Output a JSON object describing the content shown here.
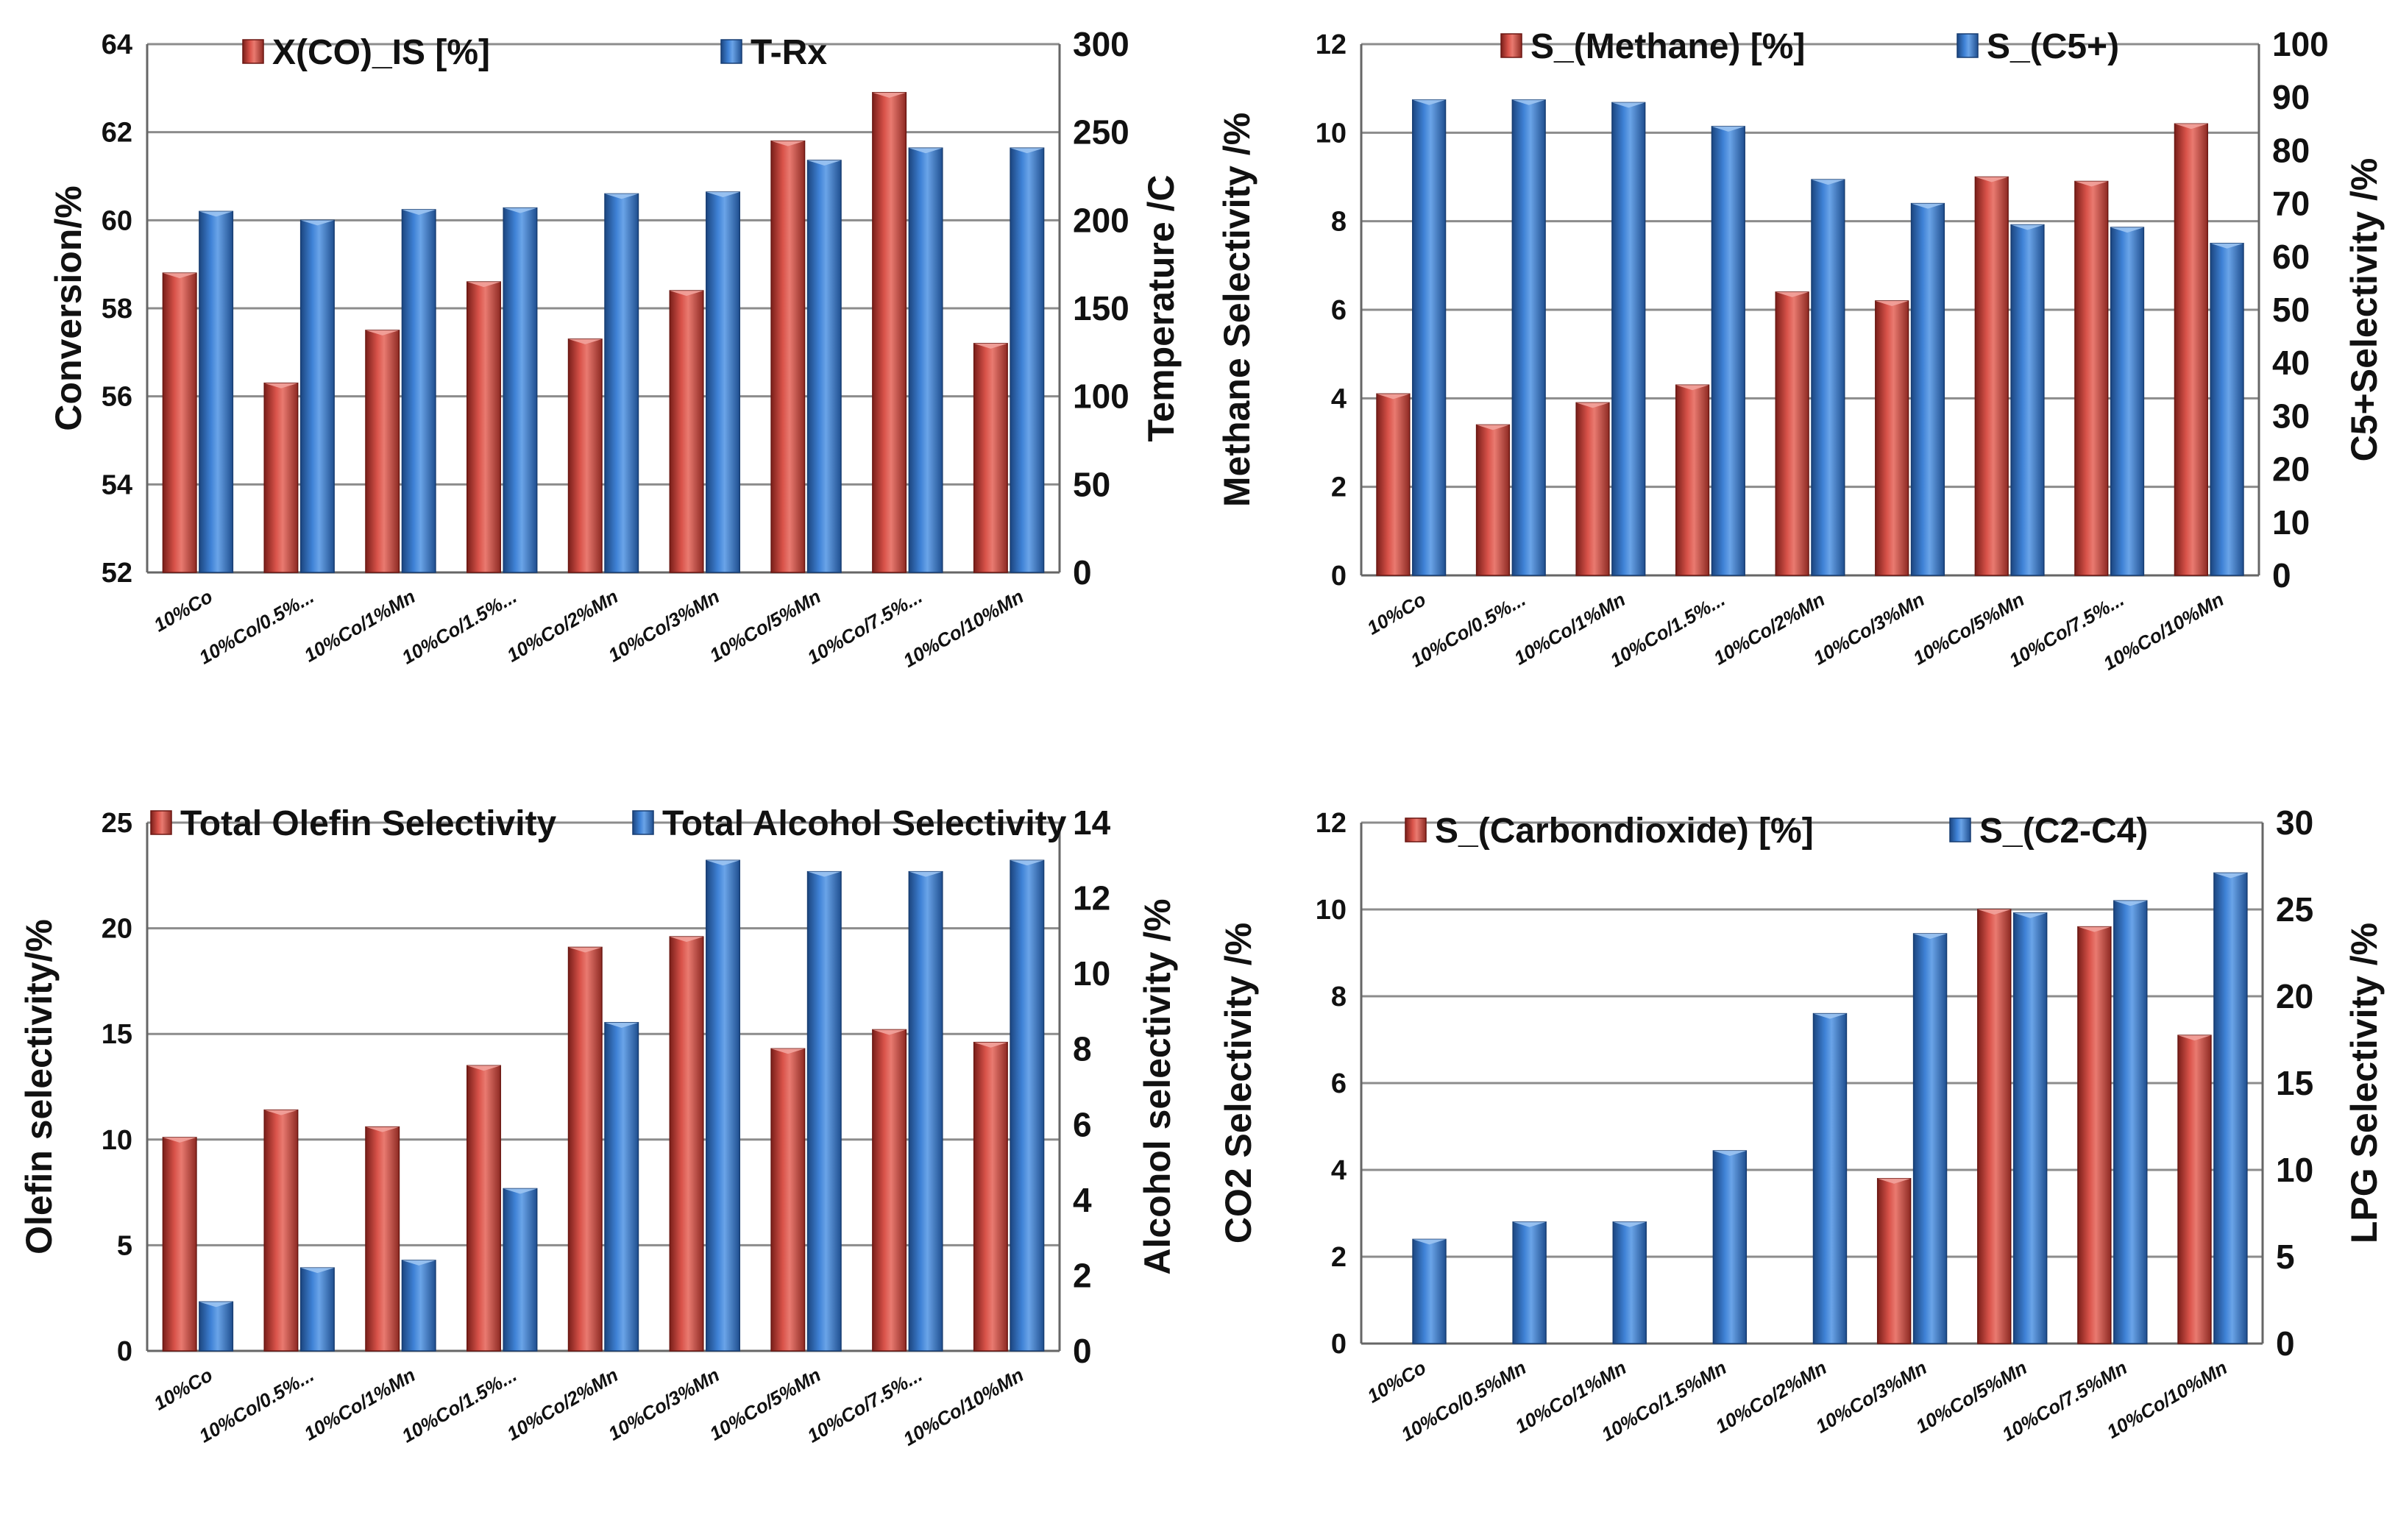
{
  "colors": {
    "series_red": "#c0392b",
    "series_blue": "#2e6fc2",
    "grid": "#8c8c8c",
    "axis": "#666666"
  },
  "chart_data": [
    {
      "type": "bar",
      "title": "",
      "categories": [
        "10%Co",
        "10%Co/0.5%...",
        "10%Co/1%Mn",
        "10%Co/1.5%...",
        "10%Co/2%Mn",
        "10%Co/3%Mn",
        "10%Co/5%Mn",
        "10%Co/7.5%...",
        "10%Co/10%Mn"
      ],
      "ylabel_left": "Conversion/%",
      "ylabel_right": "Temperature /C",
      "ylim_left": [
        52,
        64
      ],
      "yticks_left": [
        "52",
        "54",
        "56",
        "58",
        "60",
        "62",
        "64"
      ],
      "ylim_right": [
        0,
        300
      ],
      "yticks_right": [
        "0",
        "50",
        "100",
        "150",
        "200",
        "250",
        "300"
      ],
      "series": [
        {
          "name": "X(CO)_IS [%]",
          "axis": "left",
          "values": [
            58.8,
            56.3,
            57.5,
            58.6,
            57.3,
            58.4,
            61.8,
            62.9,
            57.2
          ]
        },
        {
          "name": "T-Rx",
          "axis": "right",
          "values": [
            205,
            200,
            206,
            207,
            215,
            216,
            234,
            241,
            241
          ]
        }
      ]
    },
    {
      "type": "bar",
      "title": "",
      "categories": [
        "10%Co",
        "10%Co/0.5%...",
        "10%Co/1%Mn",
        "10%Co/1.5%...",
        "10%Co/2%Mn",
        "10%Co/3%Mn",
        "10%Co/5%Mn",
        "10%Co/7.5%...",
        "10%Co/10%Mn"
      ],
      "ylabel_left": "Methane Selectivity /%",
      "ylabel_right": "C5+Selectivity /%",
      "ylim_left": [
        0,
        12
      ],
      "yticks_left": [
        "0",
        "2",
        "4",
        "6",
        "8",
        "10",
        "12"
      ],
      "ylim_right": [
        0,
        100
      ],
      "yticks_right": [
        "0",
        "10",
        "20",
        "30",
        "40",
        "50",
        "60",
        "70",
        "80",
        "90",
        "100"
      ],
      "series": [
        {
          "name": "S_(Methane) [%]",
          "axis": "left",
          "values": [
            4.1,
            3.4,
            3.9,
            4.3,
            6.4,
            6.2,
            9.0,
            8.9,
            10.2
          ]
        },
        {
          "name": "S_(C5+)",
          "axis": "right",
          "values": [
            89.5,
            89.5,
            89.0,
            84.5,
            74.5,
            70.0,
            66.0,
            65.5,
            62.5
          ]
        }
      ]
    },
    {
      "type": "bar",
      "title": "",
      "categories": [
        "10%Co",
        "10%Co/0.5%...",
        "10%Co/1%Mn",
        "10%Co/1.5%...",
        "10%Co/2%Mn",
        "10%Co/3%Mn",
        "10%Co/5%Mn",
        "10%Co/7.5%...",
        "10%Co/10%Mn"
      ],
      "ylabel_left": "Olefin selectivity/%",
      "ylabel_right": "Alcohol selectivity /%",
      "ylim_left": [
        0,
        25
      ],
      "yticks_left": [
        "0",
        "5",
        "10",
        "15",
        "20",
        "25"
      ],
      "ylim_right": [
        0,
        14
      ],
      "yticks_right": [
        "0",
        "2",
        "4",
        "6",
        "8",
        "10",
        "12",
        "14"
      ],
      "series": [
        {
          "name": "Total Olefin Selectivity",
          "axis": "left",
          "values": [
            10.1,
            11.4,
            10.6,
            13.5,
            19.1,
            19.6,
            14.3,
            15.2,
            14.6
          ]
        },
        {
          "name": "Total Alcohol Selectivity",
          "axis": "right",
          "values": [
            1.3,
            2.2,
            2.4,
            4.3,
            8.7,
            13.0,
            12.7,
            12.7,
            13.0
          ]
        }
      ]
    },
    {
      "type": "bar",
      "title": "",
      "categories": [
        "10%Co",
        "10%Co/0.5%Mn",
        "10%Co/1%Mn",
        "10%Co/1.5%Mn",
        "10%Co/2%Mn",
        "10%Co/3%Mn",
        "10%Co/5%Mn",
        "10%Co/7.5%Mn",
        "10%Co/10%Mn"
      ],
      "ylabel_left": "CO2 Selectivity /%",
      "ylabel_right": "LPG Selectivity /%",
      "ylim_left": [
        0,
        12
      ],
      "yticks_left": [
        "0",
        "2",
        "4",
        "6",
        "8",
        "10",
        "12"
      ],
      "ylim_right": [
        0,
        30
      ],
      "yticks_right": [
        "0",
        "5",
        "10",
        "15",
        "20",
        "25",
        "30"
      ],
      "series": [
        {
          "name": "S_(Carbondioxide) [%]",
          "axis": "left",
          "values": [
            0,
            0,
            0,
            0,
            0,
            3.8,
            10.0,
            9.6,
            7.1
          ]
        },
        {
          "name": "S_(C2-C4)",
          "axis": "right",
          "values": [
            6.0,
            7.0,
            7.0,
            11.1,
            19.0,
            23.6,
            24.8,
            25.5,
            27.1
          ]
        }
      ]
    }
  ]
}
